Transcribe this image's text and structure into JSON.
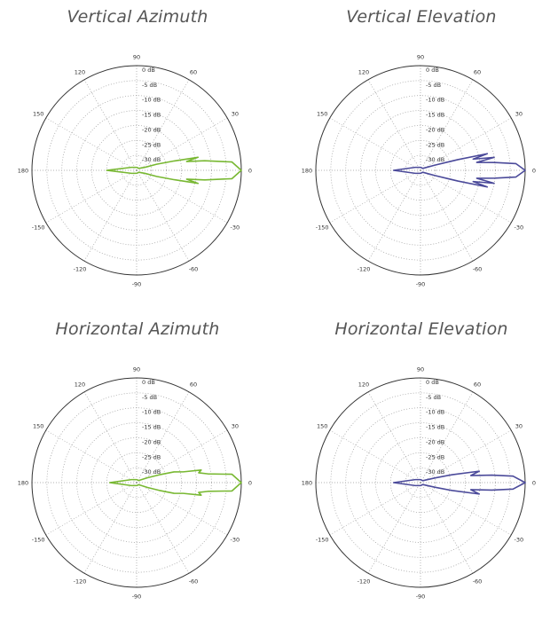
{
  "chart_data": [
    {
      "type": "polar-line",
      "title": "Vertical Azimuth",
      "color": "#78b832",
      "angle_ticks": [
        "0",
        "30",
        "60",
        "90",
        "120",
        "150",
        "180",
        "-150",
        "-120",
        "-90",
        "-60",
        "-30"
      ],
      "radial_ticks": [
        "0 dB",
        "-5 dB",
        "-10 dB",
        "-15 dB",
        "-20 dB",
        "-25 dB",
        "-30 dB"
      ],
      "rlim_db": [
        -35,
        0
      ],
      "grid": true,
      "pattern": [
        {
          "angle": 0,
          "db": 0
        },
        {
          "angle": 5,
          "db": -3
        },
        {
          "angle": 8,
          "db": -12
        },
        {
          "angle": 10,
          "db": -18
        },
        {
          "angle": 12,
          "db": -14
        },
        {
          "angle": 14,
          "db": -22
        },
        {
          "angle": 17,
          "db": -28
        },
        {
          "angle": 20,
          "db": -32
        },
        {
          "angle": 40,
          "db": -34
        },
        {
          "angle": 90,
          "db": -34
        },
        {
          "angle": 150,
          "db": -33
        },
        {
          "angle": 180,
          "db": -25
        },
        {
          "angle": 210,
          "db": -33
        },
        {
          "angle": 270,
          "db": -34
        },
        {
          "angle": 320,
          "db": -34
        },
        {
          "angle": 340,
          "db": -32
        },
        {
          "angle": 343,
          "db": -28
        },
        {
          "angle": 346,
          "db": -22
        },
        {
          "angle": 348,
          "db": -14
        },
        {
          "angle": 350,
          "db": -18
        },
        {
          "angle": 352,
          "db": -12
        },
        {
          "angle": 355,
          "db": -3
        },
        {
          "angle": 360,
          "db": 0
        }
      ]
    },
    {
      "type": "polar-line",
      "title": "Vertical Elevation",
      "color": "#4b4a9a",
      "angle_ticks": [
        "0",
        "30",
        "60",
        "90",
        "120",
        "150",
        "180",
        "-150",
        "-120",
        "-90",
        "-60",
        "-30"
      ],
      "radial_ticks": [
        "0 dB",
        "-5 dB",
        "-10 dB",
        "-15 dB",
        "-20 dB",
        "-25 dB",
        "-30 dB"
      ],
      "rlim_db": [
        -35,
        0
      ],
      "grid": true,
      "pattern": [
        {
          "angle": 0,
          "db": 0
        },
        {
          "angle": 4,
          "db": -3
        },
        {
          "angle": 6,
          "db": -10
        },
        {
          "angle": 8,
          "db": -16
        },
        {
          "angle": 10,
          "db": -10
        },
        {
          "angle": 12,
          "db": -17
        },
        {
          "angle": 14,
          "db": -12
        },
        {
          "angle": 16,
          "db": -22
        },
        {
          "angle": 20,
          "db": -30
        },
        {
          "angle": 40,
          "db": -34
        },
        {
          "angle": 90,
          "db": -34
        },
        {
          "angle": 150,
          "db": -33
        },
        {
          "angle": 180,
          "db": -26
        },
        {
          "angle": 210,
          "db": -33
        },
        {
          "angle": 270,
          "db": -34
        },
        {
          "angle": 320,
          "db": -34
        },
        {
          "angle": 340,
          "db": -30
        },
        {
          "angle": 344,
          "db": -22
        },
        {
          "angle": 346,
          "db": -12
        },
        {
          "angle": 348,
          "db": -17
        },
        {
          "angle": 350,
          "db": -10
        },
        {
          "angle": 352,
          "db": -16
        },
        {
          "angle": 354,
          "db": -10
        },
        {
          "angle": 356,
          "db": -3
        },
        {
          "angle": 360,
          "db": 0
        }
      ]
    },
    {
      "type": "polar-line",
      "title": "Horizontal Azimuth",
      "color": "#78b832",
      "angle_ticks": [
        "0",
        "30",
        "60",
        "90",
        "120",
        "150",
        "180",
        "-150",
        "-120",
        "-90",
        "-60",
        "-30"
      ],
      "radial_ticks": [
        "0 dB",
        "-5 dB",
        "-10 dB",
        "-15 dB",
        "-20 dB",
        "-25 dB",
        "-30 dB"
      ],
      "rlim_db": [
        -35,
        0
      ],
      "grid": true,
      "pattern": [
        {
          "angle": 0,
          "db": 0
        },
        {
          "angle": 5,
          "db": -3
        },
        {
          "angle": 7,
          "db": -11
        },
        {
          "angle": 9,
          "db": -14
        },
        {
          "angle": 11,
          "db": -13
        },
        {
          "angle": 13,
          "db": -19
        },
        {
          "angle": 16,
          "db": -22
        },
        {
          "angle": 19,
          "db": -27
        },
        {
          "angle": 24,
          "db": -31
        },
        {
          "angle": 45,
          "db": -34
        },
        {
          "angle": 90,
          "db": -34
        },
        {
          "angle": 150,
          "db": -33
        },
        {
          "angle": 180,
          "db": -26
        },
        {
          "angle": 210,
          "db": -33
        },
        {
          "angle": 270,
          "db": -34
        },
        {
          "angle": 315,
          "db": -34
        },
        {
          "angle": 336,
          "db": -31
        },
        {
          "angle": 341,
          "db": -27
        },
        {
          "angle": 344,
          "db": -22
        },
        {
          "angle": 347,
          "db": -19
        },
        {
          "angle": 349,
          "db": -13
        },
        {
          "angle": 351,
          "db": -14
        },
        {
          "angle": 353,
          "db": -11
        },
        {
          "angle": 355,
          "db": -3
        },
        {
          "angle": 360,
          "db": 0
        }
      ]
    },
    {
      "type": "polar-line",
      "title": "Horizontal Elevation",
      "color": "#4b4a9a",
      "angle_ticks": [
        "0",
        "30",
        "60",
        "90",
        "120",
        "150",
        "180",
        "-150",
        "-120",
        "-90",
        "-60",
        "-30"
      ],
      "radial_ticks": [
        "0 dB",
        "-5 dB",
        "-10 dB",
        "-15 dB",
        "-20 dB",
        "-25 dB",
        "-30 dB"
      ],
      "rlim_db": [
        -35,
        0
      ],
      "grid": true,
      "pattern": [
        {
          "angle": 0,
          "db": 0
        },
        {
          "angle": 4,
          "db": -4
        },
        {
          "angle": 6,
          "db": -11
        },
        {
          "angle": 8,
          "db": -18
        },
        {
          "angle": 11,
          "db": -15
        },
        {
          "angle": 14,
          "db": -24
        },
        {
          "angle": 18,
          "db": -30
        },
        {
          "angle": 40,
          "db": -34
        },
        {
          "angle": 90,
          "db": -34
        },
        {
          "angle": 150,
          "db": -33
        },
        {
          "angle": 180,
          "db": -26
        },
        {
          "angle": 210,
          "db": -33
        },
        {
          "angle": 270,
          "db": -34
        },
        {
          "angle": 320,
          "db": -34
        },
        {
          "angle": 342,
          "db": -30
        },
        {
          "angle": 346,
          "db": -24
        },
        {
          "angle": 349,
          "db": -15
        },
        {
          "angle": 352,
          "db": -18
        },
        {
          "angle": 354,
          "db": -11
        },
        {
          "angle": 356,
          "db": -4
        },
        {
          "angle": 360,
          "db": 0
        }
      ]
    }
  ]
}
